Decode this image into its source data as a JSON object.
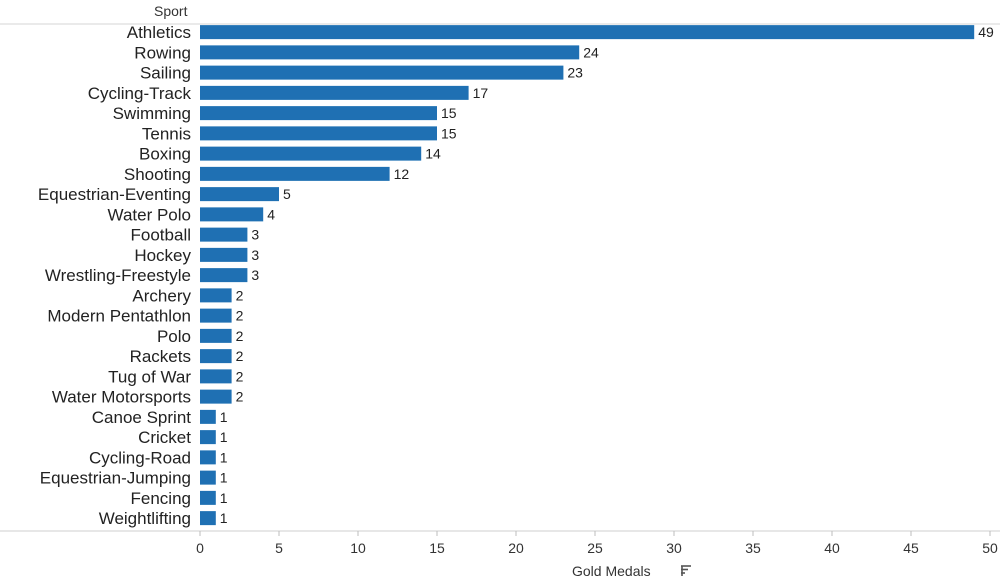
{
  "chart_data": {
    "type": "bar",
    "orientation": "horizontal",
    "row_header": "Sport",
    "xlabel": "Gold Medals",
    "sort_icon": "sort-descending-icon",
    "xlim": [
      0,
      50
    ],
    "xticks": [
      0,
      5,
      10,
      15,
      20,
      25,
      30,
      35,
      40,
      45,
      50
    ],
    "grid": false,
    "bar_color": "#1f70b3",
    "categories": [
      "Athletics",
      "Rowing",
      "Sailing",
      "Cycling-Track",
      "Swimming",
      "Tennis",
      "Boxing",
      "Shooting",
      "Equestrian-Eventing",
      "Water Polo",
      "Football",
      "Hockey",
      "Wrestling-Freestyle",
      "Archery",
      "Modern Pentathlon",
      "Polo",
      "Rackets",
      "Tug of War",
      "Water Motorsports",
      "Canoe Sprint",
      "Cricket",
      "Cycling-Road",
      "Equestrian-Jumping",
      "Fencing",
      "Weightlifting"
    ],
    "values": [
      49,
      24,
      23,
      17,
      15,
      15,
      14,
      12,
      5,
      4,
      3,
      3,
      3,
      2,
      2,
      2,
      2,
      2,
      2,
      1,
      1,
      1,
      1,
      1,
      1
    ]
  }
}
